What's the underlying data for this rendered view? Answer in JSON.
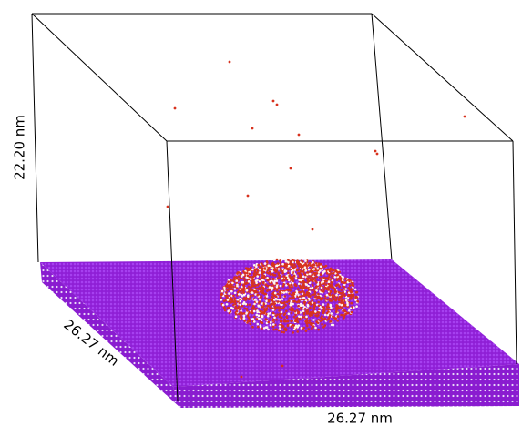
{
  "labels": {
    "height": "22.20 nm",
    "depth": "26.27 nm",
    "width": "26.27 nm"
  }
}
